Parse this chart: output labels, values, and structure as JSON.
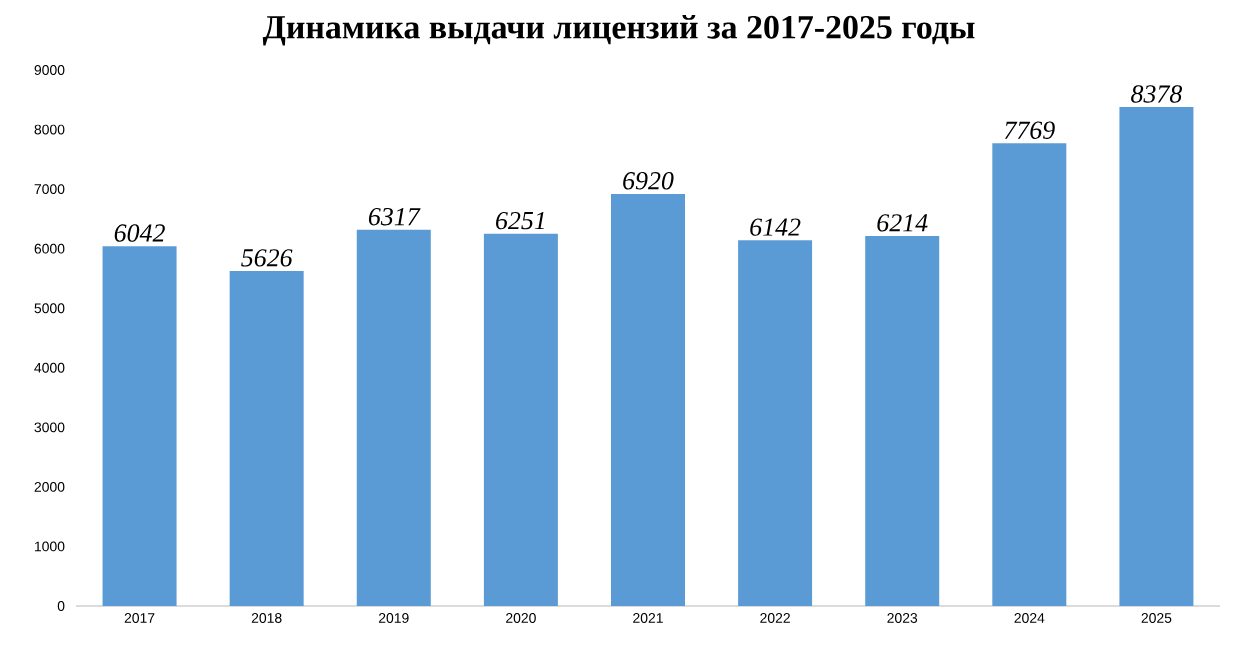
{
  "chart_data": {
    "type": "bar",
    "title": "Динамика выдачи лицензий за 2017-2025 годы",
    "categories": [
      "2017",
      "2018",
      "2019",
      "2020",
      "2021",
      "2022",
      "2023",
      "2024",
      "2025"
    ],
    "values": [
      6042,
      5626,
      6317,
      6251,
      6920,
      6142,
      6214,
      7769,
      8378
    ],
    "color": "#5b9bd5",
    "ylim": [
      0,
      9000
    ],
    "yticks": [
      0,
      1000,
      2000,
      3000,
      4000,
      5000,
      6000,
      7000,
      8000,
      9000
    ],
    "data_labels": true
  }
}
